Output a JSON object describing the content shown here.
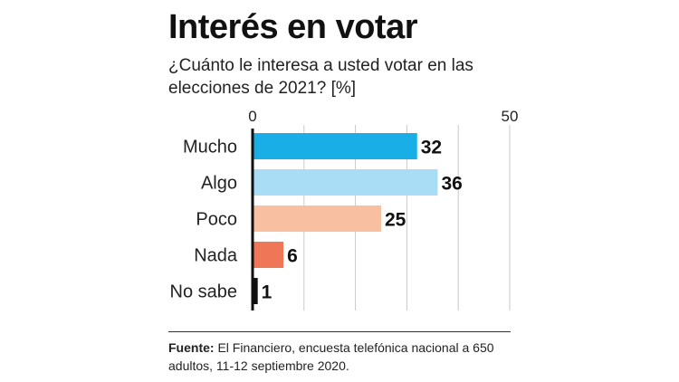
{
  "title": "Interés en votar",
  "subtitle": "¿Cuánto le interesa a usted votar en las elecciones de 2021? [%]",
  "source": {
    "label": "Fuente:",
    "text": " El Financiero, encuesta telefónica nacional a 650 adultos, 11-12 septiembre 2020."
  },
  "chart_data": {
    "type": "bar",
    "orientation": "horizontal",
    "title": "Interés en votar",
    "subtitle": "¿Cuánto le interesa a usted votar en las elecciones de 2021? [%]",
    "categories": [
      "Mucho",
      "Algo",
      "Poco",
      "Nada",
      "No sabe"
    ],
    "values": [
      32,
      36,
      25,
      6,
      1
    ],
    "colors": [
      "#1aaee6",
      "#a9dcf5",
      "#f8bfa1",
      "#ef7757",
      "#111111"
    ],
    "xlim": [
      0,
      50
    ],
    "xticks": [
      0,
      50
    ],
    "gridlines": [
      0,
      10,
      20,
      30,
      40,
      50
    ],
    "grid": true,
    "legend": "none"
  }
}
